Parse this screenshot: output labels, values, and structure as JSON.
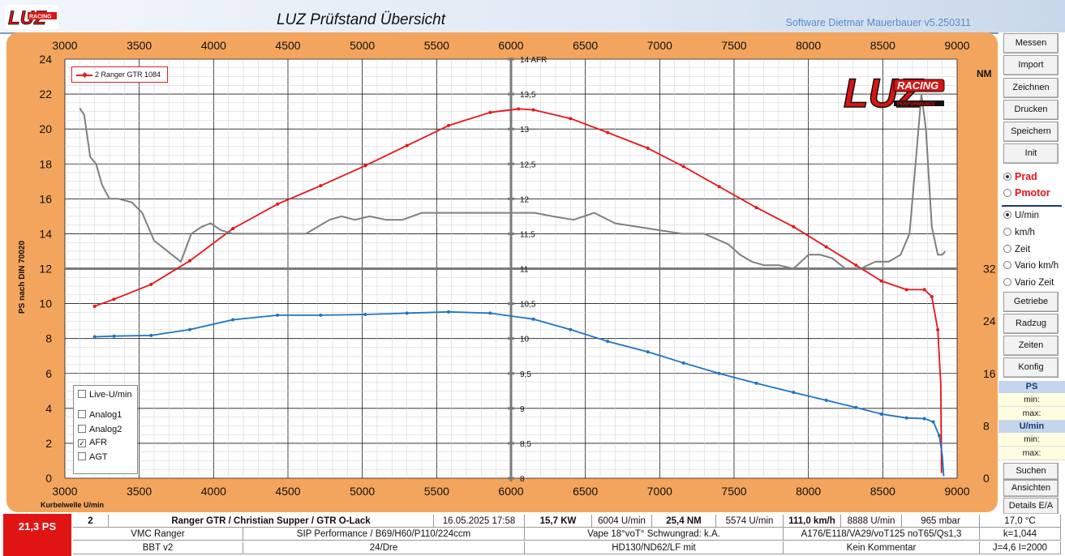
{
  "window": {
    "title": "LUZ Prüfstand  Übersicht",
    "software": "Software Dietmar Mauerbauer v5.250311"
  },
  "logo": {
    "text": "LUZ",
    "badge": "RACING",
    "tagline": "PERFORMANCE"
  },
  "sidebar": {
    "buttons_top": [
      "Messen",
      "Import",
      "Zeichnen",
      "Drucken",
      "Speichern",
      "Init"
    ],
    "power_options": [
      {
        "label": "Prad",
        "selected": true
      },
      {
        "label": "Pmotor",
        "selected": false
      }
    ],
    "xaxis_options": [
      {
        "label": "U/min",
        "selected": true
      },
      {
        "label": "km/h",
        "selected": false
      },
      {
        "label": "Zeit",
        "selected": false
      },
      {
        "label": "Vario km/h",
        "selected": false
      },
      {
        "label": "Vario Zeit",
        "selected": false
      }
    ],
    "buttons_mid": [
      "Getriebe",
      "Radzug",
      "Zeiten",
      "Konfig"
    ],
    "ps_section": {
      "title": "PS",
      "min_label": "min:",
      "max_label": "max:"
    },
    "rpm_section": {
      "title": "U/min",
      "min_label": "min:",
      "max_label": "max:"
    },
    "buttons_bottom": [
      "Suchen",
      "Ansichten",
      "Details E/A"
    ]
  },
  "chart_overlay": {
    "legend_entry": "2  Ranger GTR 1084",
    "checkboxes": [
      {
        "label": "Live-U/min",
        "checked": false
      },
      {
        "label": "Analog1",
        "checked": false
      },
      {
        "label": "Analog2",
        "checked": false
      },
      {
        "label": "AFR",
        "checked": true
      },
      {
        "label": "AGT",
        "checked": false
      }
    ]
  },
  "chart_data": {
    "type": "line",
    "xlabel": "Kurbelwelle U/min",
    "ylabel": "PS nach DIN 70020",
    "y2label": "NM",
    "xlim": [
      3000,
      9000
    ],
    "x_ticks": [
      3000,
      3500,
      4000,
      4500,
      5000,
      5500,
      6000,
      6500,
      7000,
      7500,
      8000,
      8500,
      9000
    ],
    "ylim": [
      0,
      24
    ],
    "y_ticks": [
      0,
      2,
      4,
      6,
      8,
      10,
      12,
      14,
      16,
      18,
      20,
      22,
      24
    ],
    "y2_ticks": [
      0,
      8,
      16,
      24,
      32
    ],
    "afr_axis": {
      "ticks": [
        8,
        8.5,
        9,
        9.5,
        10,
        10.5,
        11,
        11.5,
        12,
        12.5,
        13,
        13.5,
        14
      ],
      "tick_labels": [
        "8",
        "8,5",
        "9",
        "9,5",
        "10",
        "10,5",
        "11",
        "11,5",
        "12",
        "12,5",
        "13",
        "13,5",
        "14 AFR"
      ],
      "at_rpm": 6000
    },
    "grid": true,
    "series": [
      {
        "name": "2  Ranger GTR 1084",
        "axis": "PS",
        "color": "#e8141a",
        "x": [
          3200,
          3330,
          3580,
          3840,
          4130,
          4430,
          4720,
          5020,
          5300,
          5580,
          5860,
          6050,
          6150,
          6400,
          6650,
          6920,
          7160,
          7400,
          7650,
          7900,
          8120,
          8320,
          8490,
          8660,
          8780,
          8830,
          8870,
          8890,
          8895
        ],
        "values": [
          9.85,
          10.25,
          11.1,
          12.45,
          14.3,
          15.7,
          16.75,
          17.9,
          19.05,
          20.2,
          20.95,
          21.15,
          21.1,
          20.6,
          19.8,
          18.9,
          17.85,
          16.7,
          15.5,
          14.4,
          13.25,
          12.2,
          11.3,
          10.8,
          10.8,
          10.4,
          8.5,
          5.4,
          0.3
        ]
      },
      {
        "name": "NM",
        "axis": "NM",
        "color": "#1f74c2",
        "x": [
          3200,
          3330,
          3580,
          3840,
          4130,
          4430,
          4720,
          5020,
          5300,
          5580,
          5860,
          6150,
          6400,
          6650,
          6920,
          7160,
          7400,
          7650,
          7900,
          8120,
          8320,
          8490,
          8660,
          8780,
          8840,
          8880,
          8900,
          8910
        ],
        "values": [
          21.6,
          21.7,
          21.8,
          22.7,
          24.2,
          24.9,
          24.9,
          25.0,
          25.2,
          25.4,
          25.2,
          24.3,
          22.7,
          20.9,
          19.3,
          17.6,
          16.0,
          14.5,
          13.1,
          11.9,
          10.8,
          9.8,
          9.2,
          9.1,
          8.6,
          6.5,
          3.5,
          0.3
        ]
      },
      {
        "name": "AFR",
        "axis": "AFR",
        "color": "#7f7f7f",
        "x": [
          3100,
          3130,
          3170,
          3210,
          3250,
          3300,
          3360,
          3450,
          3520,
          3560,
          3600,
          3660,
          3720,
          3780,
          3850,
          3920,
          3980,
          4050,
          4130,
          4230,
          4330,
          4430,
          4540,
          4620,
          4700,
          4780,
          4860,
          4950,
          5050,
          5160,
          5270,
          5400,
          5520,
          5650,
          5780,
          5900,
          6040,
          6160,
          6280,
          6420,
          6560,
          6700,
          6850,
          7000,
          7150,
          7300,
          7460,
          7540,
          7620,
          7700,
          7800,
          7900,
          8000,
          8080,
          8160,
          8250,
          8350,
          8450,
          8540,
          8620,
          8680,
          8720,
          8760,
          8790,
          8830,
          8870,
          8900,
          8920
        ],
        "values": [
          13.3,
          13.2,
          12.6,
          12.5,
          12.2,
          12.0,
          12.0,
          11.95,
          11.8,
          11.6,
          11.4,
          11.3,
          11.2,
          11.1,
          11.5,
          11.6,
          11.65,
          11.55,
          11.5,
          11.5,
          11.5,
          11.5,
          11.5,
          11.5,
          11.6,
          11.7,
          11.75,
          11.7,
          11.75,
          11.7,
          11.7,
          11.8,
          11.8,
          11.8,
          11.8,
          11.8,
          11.8,
          11.8,
          11.75,
          11.7,
          11.8,
          11.65,
          11.6,
          11.55,
          11.5,
          11.5,
          11.35,
          11.2,
          11.1,
          11.05,
          11.05,
          11.0,
          11.2,
          11.2,
          11.15,
          11.0,
          11.0,
          11.1,
          11.1,
          11.2,
          11.5,
          12.5,
          13.5,
          13.0,
          11.6,
          11.2,
          11.2,
          11.25
        ]
      }
    ]
  },
  "status": {
    "power_display": "21,3  PS",
    "row1": [
      "2",
      "Ranger GTR / Christian Supper / GTR O-Lack",
      "16.05.2025 17:58",
      "15,7  KW",
      "6004  U/min",
      "25,4  NM",
      "5574  U/min",
      "111,0 km/h",
      "8888  U/min",
      "965  mbar",
      "17,0 °C"
    ],
    "row2": [
      "VMC Ranger",
      "SIP Performance / B69/H60/P110/224ccm",
      "Vape 18°voT° Schwungrad: k.A.",
      "A176/E118/VA29/voT125 noT65/Qs1,3",
      "k=1,044"
    ],
    "row3": [
      "BBT v2",
      "24/Dre",
      "HD130/ND62/LF mit",
      "Kein Kommentar",
      "J=4,6 I=2000"
    ]
  },
  "colors": {
    "panel": "#f4a55d",
    "accent_red": "#e8141a",
    "section_blue": "#c4d6ee"
  }
}
